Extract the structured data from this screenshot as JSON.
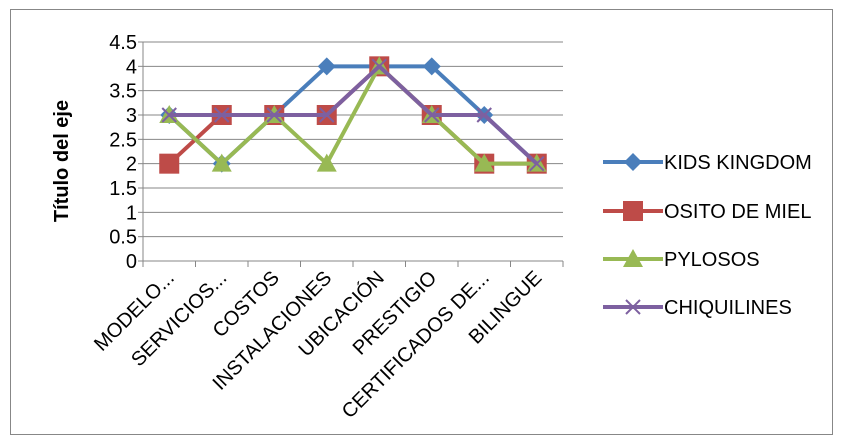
{
  "chart_data": {
    "type": "line",
    "categories": [
      "MODELO...",
      "SERVICIOS...",
      "COSTOS",
      "INSTALACIONES",
      "UBICACIÓN",
      "PRESTIGIO",
      "CERTIFICADOS DE...",
      "BILINGUE"
    ],
    "ylabel": "Título del eje",
    "ylim": [
      0,
      4.5
    ],
    "yticks": [
      "0",
      "0.5",
      "1",
      "1.5",
      "2",
      "2.5",
      "3",
      "3.5",
      "4",
      "4.5"
    ],
    "grid": true,
    "legend_position": "right",
    "series": [
      {
        "name": "KIDS KINGDOM",
        "values": [
          3,
          2,
          3,
          4,
          4,
          4,
          3,
          2
        ],
        "color": "#4a7ebb",
        "marker": "diamond"
      },
      {
        "name": "OSITO DE MIEL",
        "values": [
          2,
          3,
          3,
          3,
          4,
          3,
          2,
          2
        ],
        "color": "#be4b48",
        "marker": "square"
      },
      {
        "name": "PYLOSOS",
        "values": [
          3,
          2,
          3,
          2,
          4,
          3,
          2,
          2
        ],
        "color": "#98b954",
        "marker": "triangle"
      },
      {
        "name": "CHIQUILINES",
        "values": [
          3,
          3,
          3,
          3,
          4,
          3,
          3,
          2
        ],
        "color": "#7d60a0",
        "marker": "x"
      }
    ]
  }
}
